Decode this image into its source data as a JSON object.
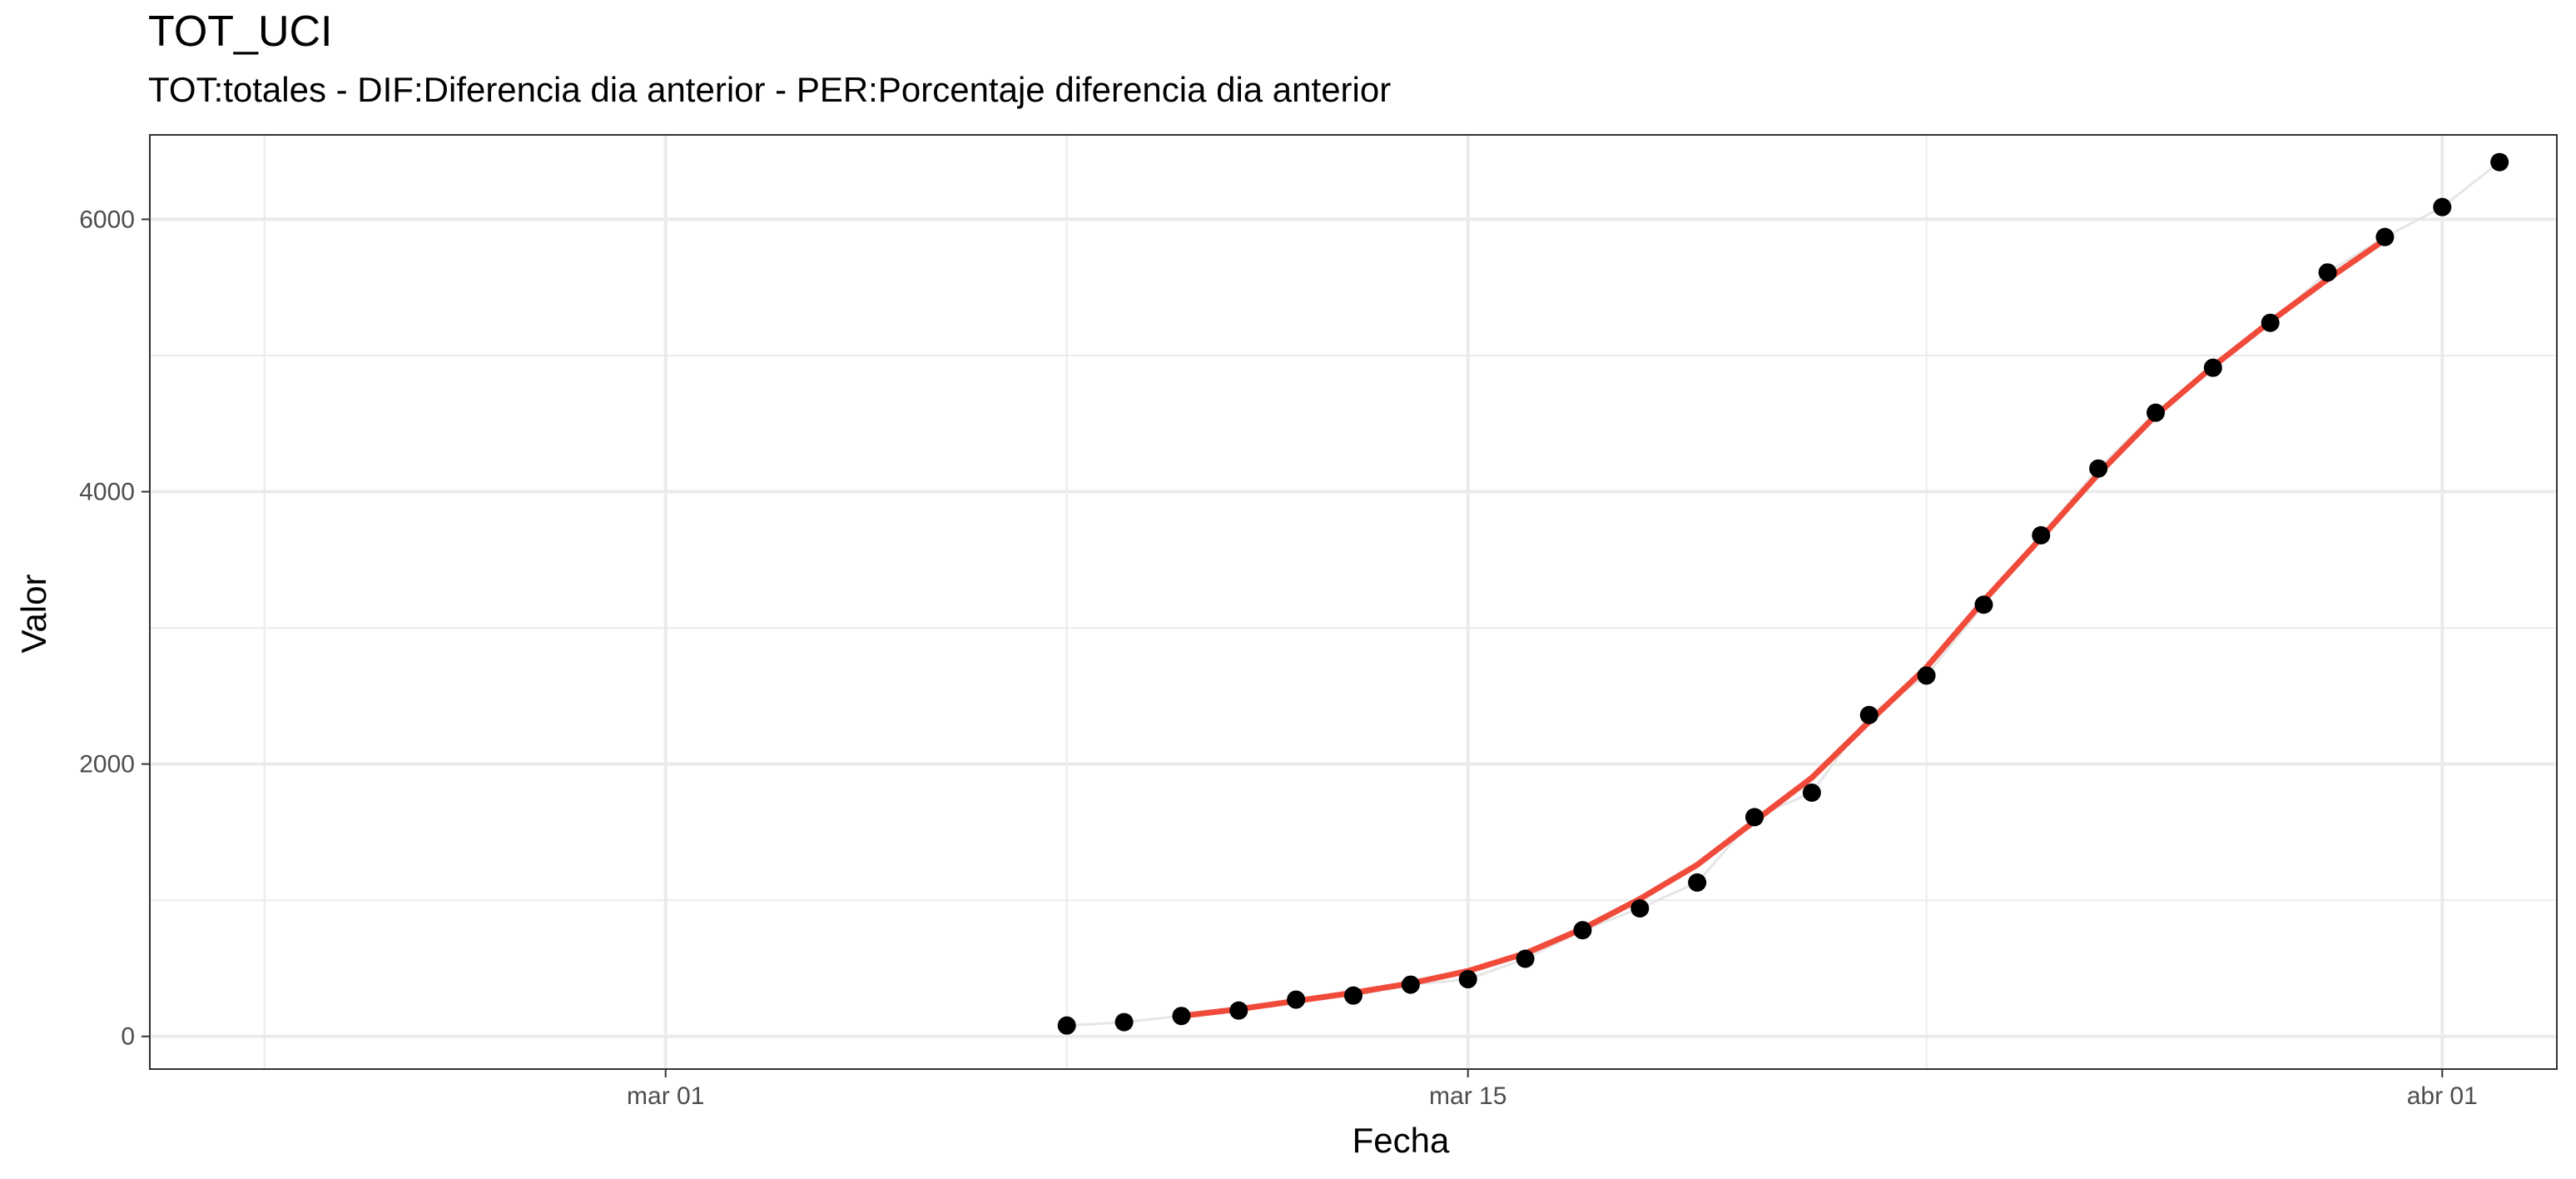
{
  "chart_data": {
    "type": "scatter",
    "title": "TOT_UCI",
    "subtitle": "TOT:totales - DIF:Diferencia dia anterior - PER:Porcentaje diferencia dia anterior",
    "xlabel": "Fecha",
    "ylabel": "Valor",
    "xlim": [
      "2020-02-21",
      "2020-04-03"
    ],
    "ylim": [
      -240,
      6620
    ],
    "x_ticks": [
      {
        "date": "2020-03-01",
        "label": "mar 01"
      },
      {
        "date": "2020-03-15",
        "label": "mar 15"
      },
      {
        "date": "2020-04-01",
        "label": "abr 01"
      }
    ],
    "x_minor_ticks": [
      "2020-02-23",
      "2020-03-08",
      "2020-03-23"
    ],
    "y_ticks": [
      0,
      2000,
      4000,
      6000
    ],
    "y_minor_ticks": [
      1000,
      3000,
      5000
    ],
    "grid": true,
    "colors": {
      "points": "#000000",
      "trend": "#f04a3a",
      "connector": "#e6e6e6",
      "grid": "#ebebeb",
      "panel_border": "#333333"
    },
    "series": [
      {
        "kind": "points",
        "x": [
          "2020-03-08",
          "2020-03-09",
          "2020-03-10",
          "2020-03-11",
          "2020-03-12",
          "2020-03-13",
          "2020-03-14",
          "2020-03-15",
          "2020-03-16",
          "2020-03-17",
          "2020-03-18",
          "2020-03-19",
          "2020-03-20",
          "2020-03-21",
          "2020-03-22",
          "2020-03-23",
          "2020-03-24",
          "2020-03-25",
          "2020-03-26",
          "2020-03-27",
          "2020-03-28",
          "2020-03-29",
          "2020-03-30",
          "2020-03-31",
          "2020-04-01",
          "2020-04-02"
        ],
        "y": [
          80,
          105,
          150,
          190,
          270,
          300,
          380,
          420,
          570,
          780,
          940,
          1130,
          1610,
          1790,
          2360,
          2650,
          3170,
          3680,
          4170,
          4580,
          4910,
          5240,
          5610,
          5870,
          6090,
          6420
        ]
      },
      {
        "kind": "trend",
        "x": [
          "2020-03-10",
          "2020-03-11",
          "2020-03-12",
          "2020-03-13",
          "2020-03-14",
          "2020-03-15",
          "2020-03-16",
          "2020-03-17",
          "2020-03-18",
          "2020-03-19",
          "2020-03-20",
          "2020-03-21",
          "2020-03-22",
          "2020-03-23",
          "2020-03-24",
          "2020-03-25",
          "2020-03-26",
          "2020-03-27",
          "2020-03-28",
          "2020-03-29",
          "2020-03-30",
          "2020-03-31"
        ],
        "y": [
          150,
          200,
          260,
          320,
          390,
          480,
          610,
          790,
          1010,
          1260,
          1580,
          1900,
          2310,
          2710,
          3200,
          3660,
          4130,
          4560,
          4920,
          5250,
          5560,
          5850
        ]
      }
    ]
  }
}
